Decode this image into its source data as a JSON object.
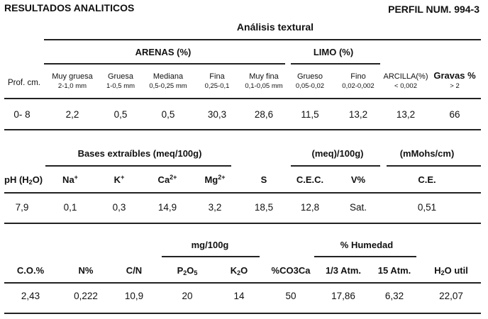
{
  "header": {
    "title": "RESULTADOS ANALITICOS",
    "profile": "PERFIL NUM. 994-3"
  },
  "textural": {
    "title": "Análisis textural",
    "arenas_label": "ARENAS (%)",
    "limo_label": "LIMO (%)",
    "prof_label": "Prof. cm.",
    "columns": [
      {
        "name": "Muy gruesa",
        "range": "2-1,0 mm"
      },
      {
        "name": "Gruesa",
        "range": "1-0,5 mm"
      },
      {
        "name": "Mediana",
        "range": "0,5-0,25 mm"
      },
      {
        "name": "Fina",
        "range": "0,25-0,1"
      },
      {
        "name": "Muy fina",
        "range": "0,1-0,05 mm"
      },
      {
        "name": "Grueso",
        "range": "0,05-0,02"
      },
      {
        "name": "Fino",
        "range": "0,02-0,002"
      },
      {
        "name": "ARCILLA(%)",
        "range": "< 0,002"
      },
      {
        "name": "Gravas %",
        "range": "> 2"
      }
    ],
    "row": {
      "prof": "0- 8",
      "values": [
        "2,2",
        "0,5",
        "0,5",
        "30,3",
        "28,6",
        "11,5",
        "13,2",
        "13,2",
        "66"
      ]
    }
  },
  "bases": {
    "title": "Bases extraíbles (meq/100g)",
    "meq_label": "(meq)/100g)",
    "mmhos_label": "(mMohs/cm)",
    "ph_label": "pH (H",
    "ph_sub": "2",
    "ph_close": "O)",
    "ions": [
      {
        "base": "Na",
        "sup": "+"
      },
      {
        "base": "K",
        "sup": "+"
      },
      {
        "base": "Ca",
        "sup": "2+"
      },
      {
        "base": "Mg",
        "sup": "2+"
      }
    ],
    "s_label": "S",
    "cec_label": "C.E.C.",
    "v_label": "V%",
    "ce_label": "C.E.",
    "row": {
      "ph": "7,9",
      "na": "0,1",
      "k": "0,3",
      "ca": "14,9",
      "mg": "3,2",
      "s": "18,5",
      "cec": "12,8",
      "v": "Sat.",
      "ce": "0,51"
    }
  },
  "chem": {
    "mg_label": "mg/100g",
    "humedad_label": "% Humedad",
    "co_label": "C.O.%",
    "n_label": "N%",
    "cn_label": "C/N",
    "p_label": {
      "a": "P",
      "a_sub": "2",
      "b": "O",
      "b_sub": "5"
    },
    "k_label": {
      "a": "K",
      "a_sub": "2",
      "b": "O"
    },
    "caco3_label": "%CO3Ca",
    "atm13_label": "1/3 Atm.",
    "atm15_label": "15 Atm.",
    "h2o_label": {
      "a": "H",
      "a_sub": "2",
      "b": "O util"
    },
    "row": {
      "co": "2,43",
      "n": "0,222",
      "cn": "10,9",
      "p": "20",
      "k": "14",
      "caco3": "50",
      "atm13": "17,86",
      "atm15": "6,32",
      "h2o": "22,07"
    }
  }
}
